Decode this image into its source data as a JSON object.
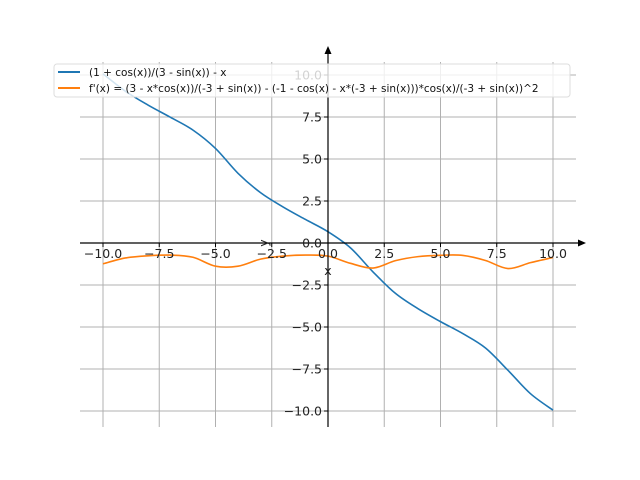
{
  "chart_data": {
    "type": "line",
    "title": "",
    "xlabel": "x",
    "ylabel": "y",
    "xlim": [
      -10,
      10
    ],
    "ylim": [
      -10,
      10
    ],
    "grid": true,
    "legend_placement": "top",
    "x_ticks": [
      "−10.0",
      "−7.5",
      "−5.0",
      "−2.5",
      "0.0",
      "2.5",
      "5.0",
      "7.5",
      "10.0"
    ],
    "x_tick_values": [
      -10,
      -7.5,
      -5,
      -2.5,
      0,
      2.5,
      5,
      7.5,
      10
    ],
    "y_ticks": [
      "10.0",
      "7.5",
      "5.0",
      "2.5",
      "0.0",
      "−2.5",
      "−5.0",
      "−7.5",
      "−10.0"
    ],
    "y_tick_values": [
      10,
      7.5,
      5,
      2.5,
      0,
      -2.5,
      -5,
      -7.5,
      -10
    ],
    "x": [
      -10,
      -9,
      -8,
      -7,
      -6,
      -5,
      -4,
      -3,
      -2,
      -1,
      0,
      1,
      2,
      3,
      4,
      5,
      6,
      7,
      8,
      9,
      10
    ],
    "series": [
      {
        "name": "(1 + cos(x))/(3 - sin(x)) - x",
        "color": "#1f77b4",
        "values": [
          10.07,
          9.03,
          8.21,
          7.48,
          6.72,
          5.63,
          4.15,
          3.0,
          2.15,
          1.4,
          0.67,
          -0.29,
          -1.72,
          -3.0,
          -3.91,
          -4.68,
          -5.4,
          -6.25,
          -7.58,
          -8.97,
          -9.95
        ]
      },
      {
        "name": "f'(x) = (3 - x*cos(x))/(-3 + sin(x)) - (-1 - cos(x) - x*(-3 + sin(x)))*cos(x)/(-3 + sin(x))^2",
        "color": "#ff7f0e",
        "values": [
          -1.24,
          -0.89,
          -0.76,
          -0.72,
          -0.85,
          -1.38,
          -1.38,
          -0.96,
          -0.78,
          -0.72,
          -0.78,
          -1.21,
          -1.49,
          -1.05,
          -0.81,
          -0.73,
          -0.74,
          -1.04,
          -1.52,
          -1.17,
          -0.86
        ]
      }
    ]
  }
}
